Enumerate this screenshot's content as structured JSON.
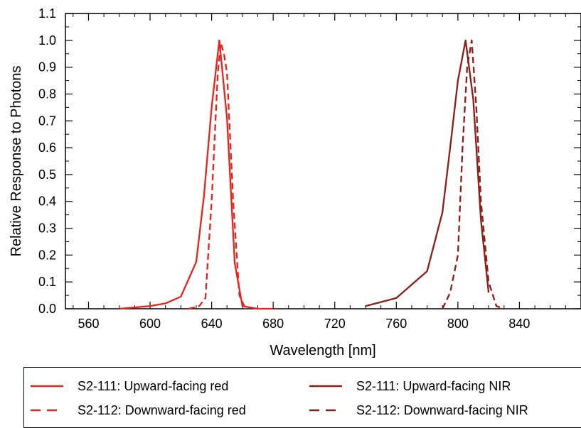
{
  "chart_data": {
    "type": "line",
    "title": "",
    "xlabel": "Wavelength [nm]",
    "ylabel": "Relative Response to Photons",
    "xlim": [
      545,
      880
    ],
    "ylim": [
      0,
      1.1
    ],
    "xticks": [
      560,
      600,
      640,
      680,
      720,
      760,
      800,
      840
    ],
    "yticks": [
      0.0,
      0.1,
      0.2,
      0.3,
      0.4,
      0.5,
      0.6,
      0.7,
      0.8,
      0.9,
      1.0,
      1.1
    ],
    "x_minor_step": 10,
    "y_minor_step": 0.05,
    "grid": false,
    "legend_position": "bottom",
    "series": [
      {
        "name": "S2-111: Upward-facing red",
        "color": "#e8231b",
        "dash": "solid",
        "x": [
          580,
          600,
          610,
          620,
          630,
          635,
          640,
          645,
          650,
          655,
          660,
          670,
          680
        ],
        "y": [
          0.0,
          0.01,
          0.02,
          0.045,
          0.175,
          0.42,
          0.75,
          1.0,
          0.71,
          0.17,
          0.01,
          0.0,
          0.0
        ]
      },
      {
        "name": "S2-112: Downward-facing red",
        "color": "#e8231b",
        "dash": "dashed",
        "x": [
          625,
          632,
          636,
          640,
          644,
          646,
          648,
          650,
          654,
          658,
          662
        ],
        "y": [
          0.0,
          0.01,
          0.04,
          0.4,
          0.88,
          0.99,
          0.95,
          0.88,
          0.4,
          0.05,
          0.0
        ]
      },
      {
        "name": "S2-111: Upward-facing NIR",
        "color": "#8c1d18",
        "dash": "solid",
        "x": [
          740,
          760,
          780,
          790,
          795,
          800,
          805,
          810,
          815,
          820
        ],
        "y": [
          0.01,
          0.04,
          0.14,
          0.36,
          0.6,
          0.85,
          1.0,
          0.78,
          0.33,
          0.06
        ]
      },
      {
        "name": "S2-112: Downward-facing NIR",
        "color": "#8c1d18",
        "dash": "dashed",
        "x": [
          790,
          795,
          800,
          803,
          806,
          809,
          812,
          815,
          820,
          825,
          830
        ],
        "y": [
          0.0,
          0.06,
          0.2,
          0.6,
          0.9,
          1.0,
          0.75,
          0.4,
          0.1,
          0.01,
          0.0
        ]
      }
    ]
  }
}
